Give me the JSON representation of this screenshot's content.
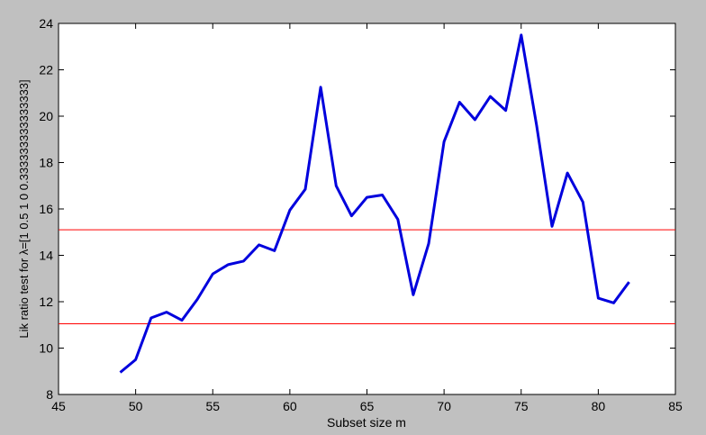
{
  "chart_data": {
    "type": "line",
    "title": "",
    "xlabel": "Subset size m",
    "ylabel": "Lik ratio test for λ=[1 0.5 1 0 0.333333333333333]",
    "xlim": [
      45,
      85
    ],
    "ylim": [
      8,
      24
    ],
    "xticks": [
      45,
      50,
      55,
      60,
      65,
      70,
      75,
      80,
      85
    ],
    "yticks": [
      8,
      10,
      12,
      14,
      16,
      18,
      20,
      22,
      24
    ],
    "grid": false,
    "legend": "none",
    "series": [
      {
        "color": "#0000dd",
        "x": [
          49,
          50,
          51,
          52,
          53,
          54,
          55,
          56,
          57,
          58,
          59,
          60,
          61,
          62,
          63,
          64,
          65,
          66,
          67,
          68,
          69,
          70,
          71,
          72,
          73,
          74,
          75,
          76,
          77,
          78,
          79,
          80,
          81,
          82
        ],
        "y": [
          8.95,
          9.5,
          11.3,
          11.55,
          11.2,
          12.1,
          13.2,
          13.6,
          13.75,
          14.45,
          14.2,
          15.95,
          16.85,
          21.25,
          17.0,
          15.7,
          16.5,
          16.6,
          15.55,
          12.3,
          14.5,
          18.9,
          20.6,
          19.85,
          20.85,
          20.25,
          23.5,
          19.6,
          15.25,
          17.55,
          16.3,
          12.15,
          11.95,
          12.85
        ]
      }
    ],
    "reference_lines": [
      {
        "y": 15.1,
        "color": "#ff0000"
      },
      {
        "y": 11.05,
        "color": "#ff0000"
      }
    ]
  }
}
